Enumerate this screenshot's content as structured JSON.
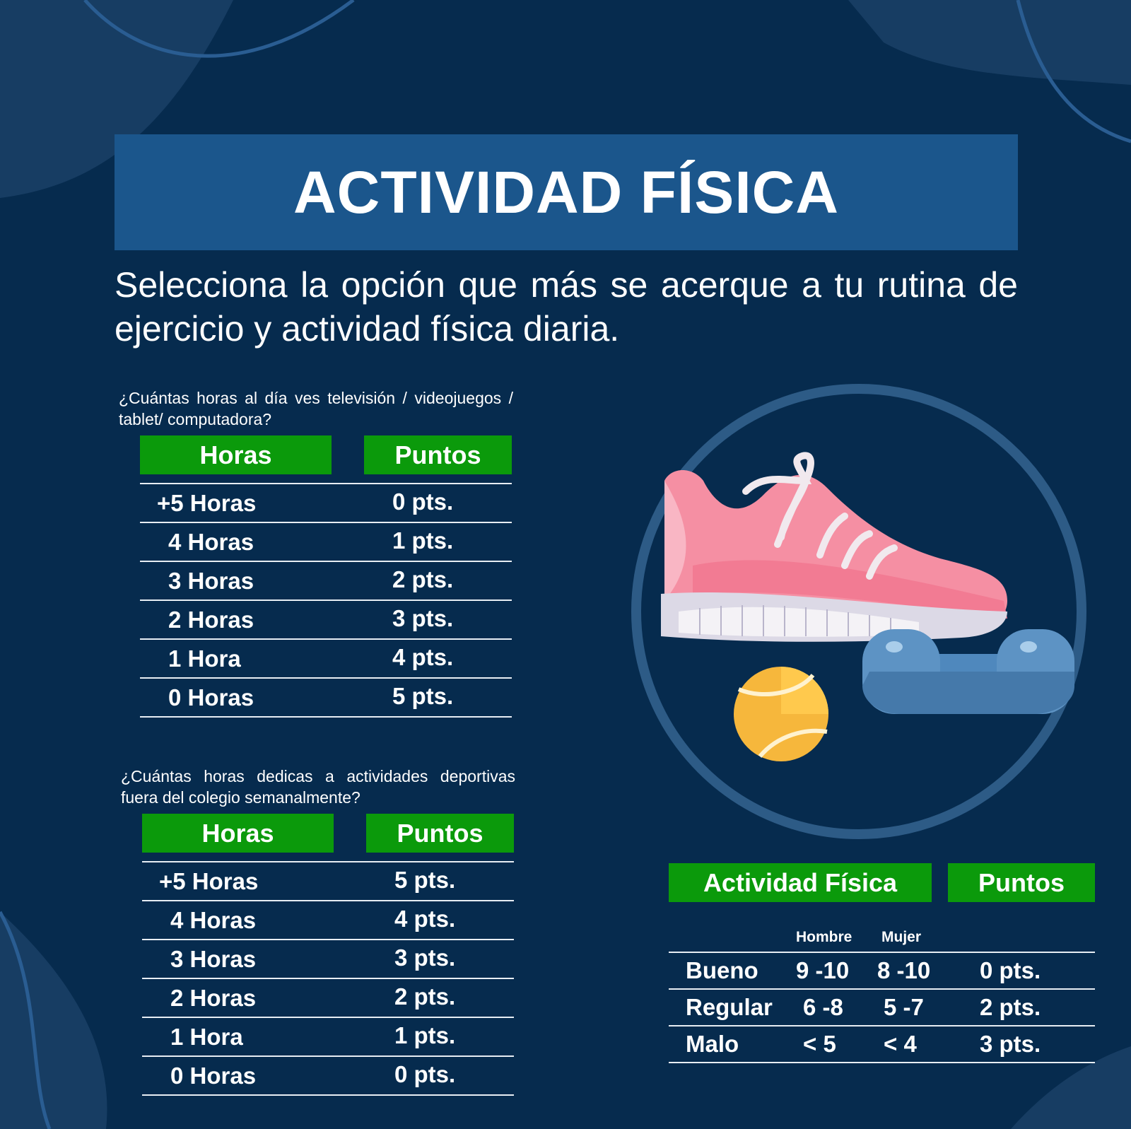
{
  "colors": {
    "background": "#062b4e",
    "banner": "#1b568c",
    "header_green": "#0b9a0b",
    "text": "#ffffff",
    "shoe_pink": "#f58fa3",
    "dumbbell_blue": "#5d93c4",
    "ball_yellow": "#f6b73c"
  },
  "title": "ACTIVIDAD FÍSICA",
  "subtitle": "Selecciona la opción que más se acerque a tu rutina de ejercicio y actividad física diaria.",
  "illustration": {
    "icons": [
      "sneaker-icon",
      "dumbbell-icon",
      "tennis-ball-icon"
    ]
  },
  "table1": {
    "question": "¿Cuántas horas al día ves televisión / videojuegos / tablet/ computadora?",
    "col_hours": "Horas",
    "col_points": "Puntos",
    "rows": [
      {
        "hours": "+5 Horas",
        "points": "0 pts."
      },
      {
        "hours": "4 Horas",
        "points": "1  pts."
      },
      {
        "hours": "3 Horas",
        "points": "2  pts."
      },
      {
        "hours": "2 Horas",
        "points": "3  pts."
      },
      {
        "hours": "1 Hora",
        "points": "4  pts."
      },
      {
        "hours": "0 Horas",
        "points": "5  pts."
      }
    ]
  },
  "table2": {
    "question": "¿Cuántas horas dedicas a actividades deportivas fuera del colegio semanalmente?",
    "col_hours": "Horas",
    "col_points": "Puntos",
    "rows": [
      {
        "hours": "+5 Horas",
        "points": "5 pts."
      },
      {
        "hours": "4 Horas",
        "points": "4  pts."
      },
      {
        "hours": "3 Horas",
        "points": "3  pts."
      },
      {
        "hours": "2 Horas",
        "points": "2 pts."
      },
      {
        "hours": "1 Hora",
        "points": "1 pts."
      },
      {
        "hours": "0 Horas",
        "points": "0 pts."
      }
    ]
  },
  "table3": {
    "col_activity": "Actividad Física",
    "col_points": "Puntos",
    "sub_male": "Hombre",
    "sub_female": "Mujer",
    "rows": [
      {
        "level": "Bueno",
        "male": "9 -10",
        "female": "8 -10",
        "points": "0 pts."
      },
      {
        "level": "Regular",
        "male": "6 -8",
        "female": "5 -7",
        "points": "2  pts."
      },
      {
        "level": "Malo",
        "male": "< 5",
        "female": "< 4",
        "points": "3  pts."
      }
    ]
  }
}
